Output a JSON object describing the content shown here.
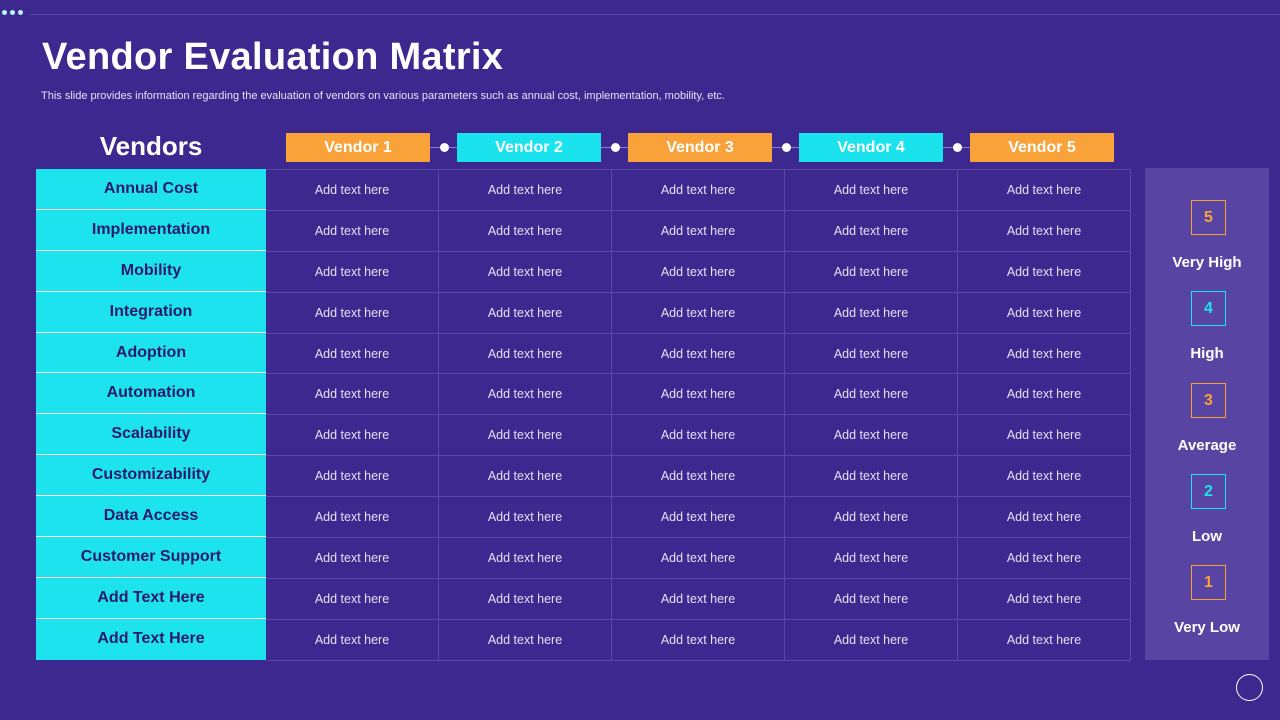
{
  "slide": {
    "title": "Vendor Evaluation Matrix",
    "subtitle": "This slide provides information regarding the evaluation of vendors on various parameters such as annual cost, implementation, mobility, etc."
  },
  "header": {
    "vendors_label": "Vendors",
    "vendors": [
      "Vendor 1",
      "Vendor 2",
      "Vendor 3",
      "Vendor 4",
      "Vendor 5"
    ]
  },
  "criteria": [
    "Annual Cost",
    "Implementation",
    "Mobility",
    "Integration",
    "Adoption",
    "Automation",
    "Scalability",
    "Customizability",
    "Data Access",
    "Customer Support",
    "Add Text Here",
    "Add Text Here"
  ],
  "cells": [
    [
      "Add text here",
      "Add text here",
      "Add text here",
      "Add text here",
      "Add text here"
    ],
    [
      "Add text here",
      "Add text here",
      "Add text here",
      "Add text here",
      "Add text here"
    ],
    [
      "Add text here",
      "Add text here",
      "Add text here",
      "Add text here",
      "Add text here"
    ],
    [
      "Add text here",
      "Add text here",
      "Add text here",
      "Add text here",
      "Add text here"
    ],
    [
      "Add text here",
      "Add text here",
      "Add text here",
      "Add text here",
      "Add text here"
    ],
    [
      "Add text here",
      "Add text here",
      "Add text here",
      "Add text here",
      "Add text here"
    ],
    [
      "Add text here",
      "Add text here",
      "Add text here",
      "Add text here",
      "Add text here"
    ],
    [
      "Add text here",
      "Add text here",
      "Add text here",
      "Add text here",
      "Add text here"
    ],
    [
      "Add text here",
      "Add text here",
      "Add text here",
      "Add text here",
      "Add text here"
    ],
    [
      "Add text here",
      "Add text here",
      "Add text here",
      "Add text here",
      "Add text here"
    ],
    [
      "Add text here",
      "Add text here",
      "Add text here",
      "Add text here",
      "Add text here"
    ],
    [
      "Add text here",
      "Add text here",
      "Add text here",
      "Add text here",
      "Add text here"
    ]
  ],
  "legend": [
    {
      "score": "5",
      "label": "Very High"
    },
    {
      "score": "4",
      "label": "High"
    },
    {
      "score": "3",
      "label": "Average"
    },
    {
      "score": "2",
      "label": "Low"
    },
    {
      "score": "1",
      "label": "Very Low"
    }
  ],
  "colors": {
    "background": "#3d2890",
    "accent_orange": "#f9a23a",
    "accent_cyan": "#1de3ef",
    "legend_panel": "#5844a2"
  },
  "icons": [
    "slide-dots-icon",
    "nav-circle-icon"
  ]
}
